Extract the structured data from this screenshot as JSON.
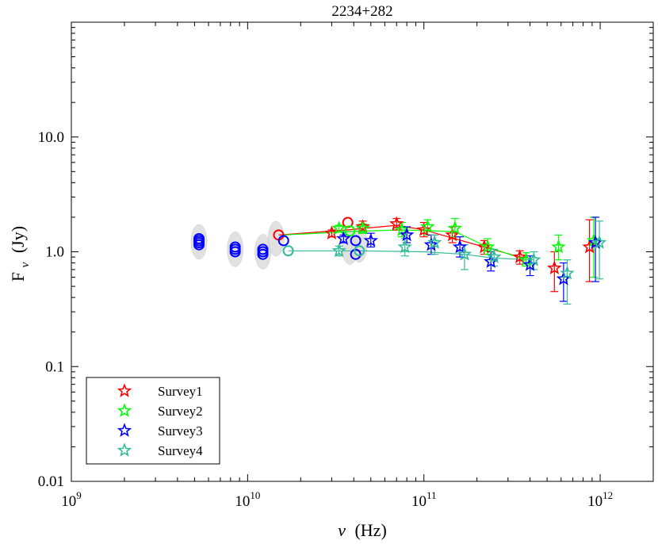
{
  "chart_data": {
    "type": "scatter",
    "title": "2234+282",
    "xlabel_main": "ν",
    "xlabel_unit": "(Hz)",
    "ylabel_main": "F",
    "ylabel_sub": "ν",
    "ylabel_unit": "(Jy)",
    "x_scale": "log",
    "y_scale": "log",
    "xlim": [
      1000000000.0,
      2000000000000.0
    ],
    "ylim": [
      0.01,
      100
    ],
    "x_ticks": [
      {
        "value": 1000000000.0,
        "base": "10",
        "exp": "9"
      },
      {
        "value": 10000000000.0,
        "base": "10",
        "exp": "10"
      },
      {
        "value": 100000000000.0,
        "base": "10",
        "exp": "11"
      },
      {
        "value": 1000000000000.0,
        "base": "10",
        "exp": "12"
      }
    ],
    "y_ticks": [
      {
        "value": 0.01,
        "label": "0.01"
      },
      {
        "value": 0.1,
        "label": "0.1"
      },
      {
        "value": 1.0,
        "label": "1.0"
      },
      {
        "value": 10.0,
        "label": "10.0"
      }
    ],
    "legend_position": "bottom-left",
    "grid": false,
    "series": [
      {
        "name": "Survey1",
        "color": "#ff0000",
        "line_points": [
          [
            15000000000.0,
            1.4
          ],
          [
            37000000000.0,
            1.55
          ],
          [
            70000000000.0,
            1.7
          ],
          [
            100000000000.0,
            1.55
          ],
          [
            220000000000.0,
            1.1
          ],
          [
            350000000000.0,
            0.9
          ],
          [
            400000000000.0,
            0.88
          ]
        ],
        "circles": [
          [
            15000000000.0,
            1.4
          ],
          [
            37000000000.0,
            1.8
          ]
        ],
        "stars": [
          {
            "x": 30000000000.0,
            "y": 1.45,
            "lo": 1.35,
            "hi": 1.55
          },
          {
            "x": 45000000000.0,
            "y": 1.65,
            "lo": 1.45,
            "hi": 1.85
          },
          {
            "x": 70000000000.0,
            "y": 1.75,
            "lo": 1.55,
            "hi": 1.95
          },
          {
            "x": 100000000000.0,
            "y": 1.55,
            "lo": 1.35,
            "hi": 1.8
          },
          {
            "x": 145000000000.0,
            "y": 1.4,
            "lo": 1.2,
            "hi": 1.65
          },
          {
            "x": 220000000000.0,
            "y": 1.1,
            "lo": 0.95,
            "hi": 1.25
          },
          {
            "x": 350000000000.0,
            "y": 0.9,
            "lo": 0.78,
            "hi": 1.02
          },
          {
            "x": 550000000000.0,
            "y": 0.72,
            "lo": 0.45,
            "hi": 1.0
          },
          {
            "x": 870000000000.0,
            "y": 1.1,
            "lo": 0.55,
            "hi": 1.9
          }
        ]
      },
      {
        "name": "Survey2",
        "color": "#00ff00",
        "line_points": [
          [
            16000000000.0,
            1.4
          ],
          [
            38000000000.0,
            1.5
          ],
          [
            75000000000.0,
            1.55
          ],
          [
            150000000000.0,
            1.5
          ],
          [
            230000000000.0,
            1.1
          ],
          [
            380000000000.0,
            0.85
          ]
        ],
        "circles": [
          [
            38000000000.0,
            1.52
          ]
        ],
        "stars": [
          {
            "x": 33000000000.0,
            "y": 1.6,
            "lo": 1.5,
            "hi": 1.7
          },
          {
            "x": 45000000000.0,
            "y": 1.6,
            "lo": 1.45,
            "hi": 1.75
          },
          {
            "x": 75000000000.0,
            "y": 1.55,
            "lo": 1.35,
            "hi": 1.8
          },
          {
            "x": 105000000000.0,
            "y": 1.65,
            "lo": 1.4,
            "hi": 1.9
          },
          {
            "x": 150000000000.0,
            "y": 1.6,
            "lo": 1.35,
            "hi": 1.95
          },
          {
            "x": 230000000000.0,
            "y": 1.1,
            "lo": 0.95,
            "hi": 1.3
          },
          {
            "x": 380000000000.0,
            "y": 0.85,
            "lo": 0.75,
            "hi": 0.98
          },
          {
            "x": 580000000000.0,
            "y": 1.1,
            "lo": 0.85,
            "hi": 1.4
          },
          {
            "x": 920000000000.0,
            "y": 1.25,
            "lo": 0.6,
            "hi": 2.0
          }
        ]
      },
      {
        "name": "Survey3",
        "color": "#0000ff",
        "line_points": [],
        "circles": [
          [
            5300000000.0,
            1.15
          ],
          [
            5300000000.0,
            1.2
          ],
          [
            5300000000.0,
            1.25
          ],
          [
            5300000000.0,
            1.3
          ],
          [
            8500000000.0,
            1.0
          ],
          [
            8500000000.0,
            1.05
          ],
          [
            8500000000.0,
            1.1
          ],
          [
            12200000000.0,
            0.95
          ],
          [
            12200000000.0,
            1.0
          ],
          [
            12200000000.0,
            1.05
          ],
          [
            16000000000.0,
            1.25
          ],
          [
            41000000000.0,
            1.25
          ],
          [
            41000000000.0,
            0.95
          ]
        ],
        "stars": [
          {
            "x": 35000000000.0,
            "y": 1.3,
            "lo": 1.2,
            "hi": 1.4
          },
          {
            "x": 50000000000.0,
            "y": 1.25,
            "lo": 1.1,
            "hi": 1.45
          },
          {
            "x": 80000000000.0,
            "y": 1.4,
            "lo": 1.2,
            "hi": 1.65
          },
          {
            "x": 110000000000.0,
            "y": 1.15,
            "lo": 0.95,
            "hi": 1.4
          },
          {
            "x": 160000000000.0,
            "y": 1.1,
            "lo": 0.9,
            "hi": 1.35
          },
          {
            "x": 240000000000.0,
            "y": 0.82,
            "lo": 0.68,
            "hi": 1.0
          },
          {
            "x": 400000000000.0,
            "y": 0.77,
            "lo": 0.62,
            "hi": 0.92
          },
          {
            "x": 620000000000.0,
            "y": 0.58,
            "lo": 0.37,
            "hi": 0.8
          },
          {
            "x": 940000000000.0,
            "y": 1.2,
            "lo": 0.55,
            "hi": 2.0
          }
        ]
      },
      {
        "name": "Survey4",
        "color": "#33bb99",
        "line_points": [
          [
            17000000000.0,
            1.02
          ],
          [
            43000000000.0,
            1.02
          ],
          [
            100000000000.0,
            1.0
          ],
          [
            170000000000.0,
            0.95
          ],
          [
            250000000000.0,
            0.88
          ],
          [
            420000000000.0,
            0.85
          ]
        ],
        "circles": [
          [
            17000000000.0,
            1.02
          ],
          [
            43000000000.0,
            1.02
          ]
        ],
        "stars": [
          {
            "x": 33000000000.0,
            "y": 1.02,
            "lo": 0.92,
            "hi": 1.12
          },
          {
            "x": 78000000000.0,
            "y": 1.1,
            "lo": 0.92,
            "hi": 1.3
          },
          {
            "x": 115000000000.0,
            "y": 1.2,
            "lo": 0.95,
            "hi": 1.4
          },
          {
            "x": 170000000000.0,
            "y": 0.95,
            "lo": 0.7,
            "hi": 1.15
          },
          {
            "x": 250000000000.0,
            "y": 0.9,
            "lo": 0.75,
            "hi": 1.05
          },
          {
            "x": 420000000000.0,
            "y": 0.85,
            "lo": 0.7,
            "hi": 1.0
          },
          {
            "x": 650000000000.0,
            "y": 0.65,
            "lo": 0.35,
            "hi": 0.85
          },
          {
            "x": 990000000000.0,
            "y": 1.2,
            "lo": 0.58,
            "hi": 1.85
          }
        ]
      }
    ],
    "gray_clusters": [
      {
        "x": 5300000000.0,
        "y": 1.22
      },
      {
        "x": 8500000000.0,
        "y": 1.05
      },
      {
        "x": 12200000000.0,
        "y": 1.0
      },
      {
        "x": 14500000000.0,
        "y": 1.3
      },
      {
        "x": 38000000000.0,
        "y": 1.1
      },
      {
        "x": 43000000000.0,
        "y": 1.15
      }
    ]
  }
}
